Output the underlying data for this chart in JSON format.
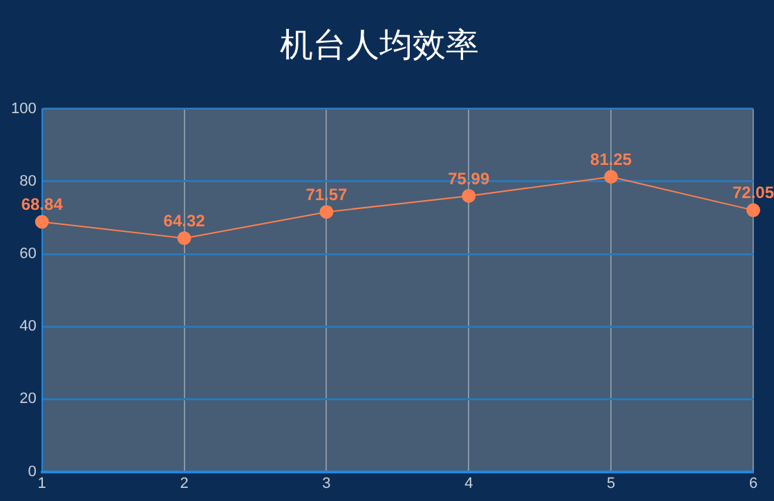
{
  "chart_data": {
    "type": "line",
    "title": "机台人均效率",
    "categories": [
      "1",
      "2",
      "3",
      "4",
      "5",
      "6"
    ],
    "series": [
      {
        "color": "#ff7f50",
        "values": [
          68.84,
          64.32,
          71.57,
          75.99,
          81.25,
          72.05
        ]
      }
    ],
    "ylim": [
      0,
      100
    ],
    "yticks": [
      0,
      20,
      40,
      60,
      80,
      100
    ],
    "grid": true,
    "marker": "circle",
    "data_labels": true
  }
}
